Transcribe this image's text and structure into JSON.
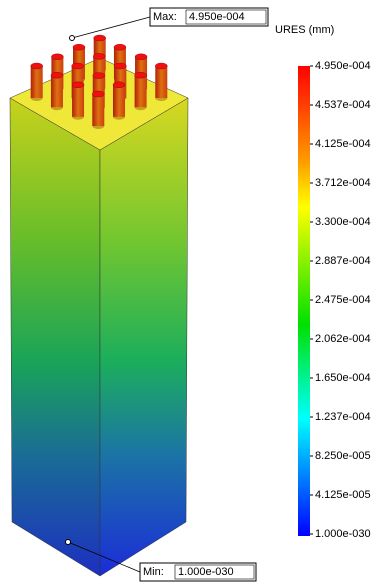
{
  "legend": {
    "title": "URES (mm)",
    "labels": [
      "4.950e-004",
      "4.537e-004",
      "4.125e-004",
      "3.712e-004",
      "3.300e-004",
      "2.887e-004",
      "2.475e-004",
      "2.062e-004",
      "1.650e-004",
      "1.237e-004",
      "8.250e-005",
      "4.125e-005",
      "1.000e-030"
    ]
  },
  "max": {
    "label": "Max:",
    "value": "4.950e-004"
  },
  "min": {
    "label": "Min:",
    "value": "1.000e-030"
  }
}
